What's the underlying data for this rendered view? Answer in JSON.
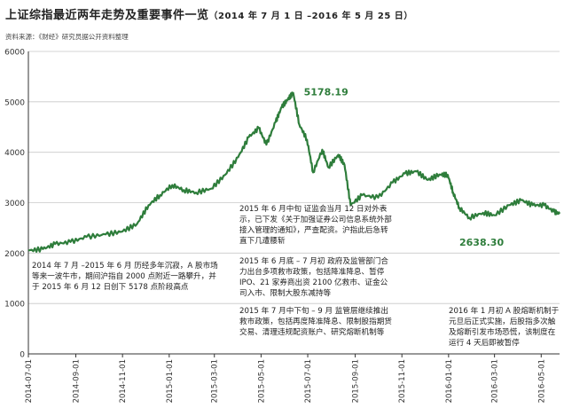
{
  "header": {
    "title": "上证综指最近两年走势及重要事件一览",
    "subtitle": "（2014 年 7 月 1 日 –2016 年 5 月 25 日）",
    "source": "资料来源：《财经》研究员据公开资料整理"
  },
  "colors": {
    "line": "#2e7d3b",
    "peak_label": "#2e7d3b",
    "axis": "#333333",
    "grid": "#c8c8c8"
  },
  "chart_data": {
    "type": "line",
    "ylim": [
      0,
      6000
    ],
    "yticks": [
      0,
      1000,
      2000,
      3000,
      4000,
      5000,
      6000
    ],
    "ytick_labels": [
      "0",
      "1000",
      "2000",
      "3000",
      "4000",
      "5000",
      "6000"
    ],
    "xlim": [
      "2014-07-01",
      "2016-05-25"
    ],
    "xtick_labels": [
      "2014-07-01",
      "2014-09-01",
      "2014-11-01",
      "2015-01-01",
      "2015-03-01",
      "2015-05-01",
      "2015-07-01",
      "2015-09-01",
      "2015-11-01",
      "2016-01-01",
      "2016-03-01",
      "2016-05-01"
    ],
    "grid": true,
    "series": [
      {
        "x": [
          "2014-07-01",
          "2014-07-20",
          "2014-08-05",
          "2014-08-25",
          "2014-09-15",
          "2014-10-10",
          "2014-11-01",
          "2014-11-20",
          "2014-12-05",
          "2014-12-20",
          "2015-01-05",
          "2015-01-20",
          "2015-02-05",
          "2015-02-25",
          "2015-03-15",
          "2015-04-01",
          "2015-04-15",
          "2015-04-28",
          "2015-05-08",
          "2015-05-20",
          "2015-05-28",
          "2015-06-05",
          "2015-06-12",
          "2015-06-20",
          "2015-06-30",
          "2015-07-08",
          "2015-07-20",
          "2015-07-28",
          "2015-08-10",
          "2015-08-18",
          "2015-08-26",
          "2015-09-10",
          "2015-10-01",
          "2015-10-20",
          "2015-11-05",
          "2015-11-20",
          "2015-12-05",
          "2015-12-20",
          "2015-12-31",
          "2016-01-07",
          "2016-01-15",
          "2016-01-28",
          "2016-02-15",
          "2016-03-01",
          "2016-03-20",
          "2016-04-05",
          "2016-04-20",
          "2016-05-05",
          "2016-05-18",
          "2016-05-25"
        ],
        "y": [
          2050,
          2080,
          2180,
          2220,
          2320,
          2370,
          2430,
          2580,
          2950,
          3150,
          3350,
          3250,
          3200,
          3280,
          3550,
          3900,
          4300,
          4480,
          4150,
          4600,
          4900,
          5050,
          5178.19,
          4550,
          4250,
          3600,
          4050,
          3700,
          3950,
          3750,
          2950,
          3150,
          3100,
          3400,
          3580,
          3620,
          3450,
          3560,
          3550,
          3200,
          2900,
          2700,
          2800,
          2750,
          2950,
          3050,
          2950,
          2950,
          2820,
          2780
        ]
      }
    ],
    "annotations": {
      "peak_label": "5178.19",
      "trough_label": "2638.30",
      "note1": "2014 年 7 月 –2015 年 6 月 历经多年沉寂，A 股市场等来一波牛市，期间沪指自 2000 点附近一路攀升，并于 2015 年 6 月 12 日创下 5178 点阶段高点",
      "note2": "2015 年 6 月中旬 证监会当月 12 日对外表示，已下发《关于加强证券公司信息系统外部接入管理的通知》，严查配资。沪指此后急转直下几遭腰斩",
      "note3": "2015 年 6 月底 – 7 月初 政府及监管部门合力出台多项救市政策，包括降准降息、暂停 IPO、21 家券商出资 2100 亿救市、证金公司入市、限制大股东减持等",
      "note4": "2015 年 7 月中下旬 – 9 月 监管层继续推出救市政策，包括再度降准降息、限制股指期货交易、清理违规配资账户、研究熔断机制等",
      "note5": "2016 年 1 月初 A 股熔断机制于元旦后正式实施，后股指多次触及熔断引发市场恐慌，该制度在运行 4 天后即被暂停"
    }
  }
}
